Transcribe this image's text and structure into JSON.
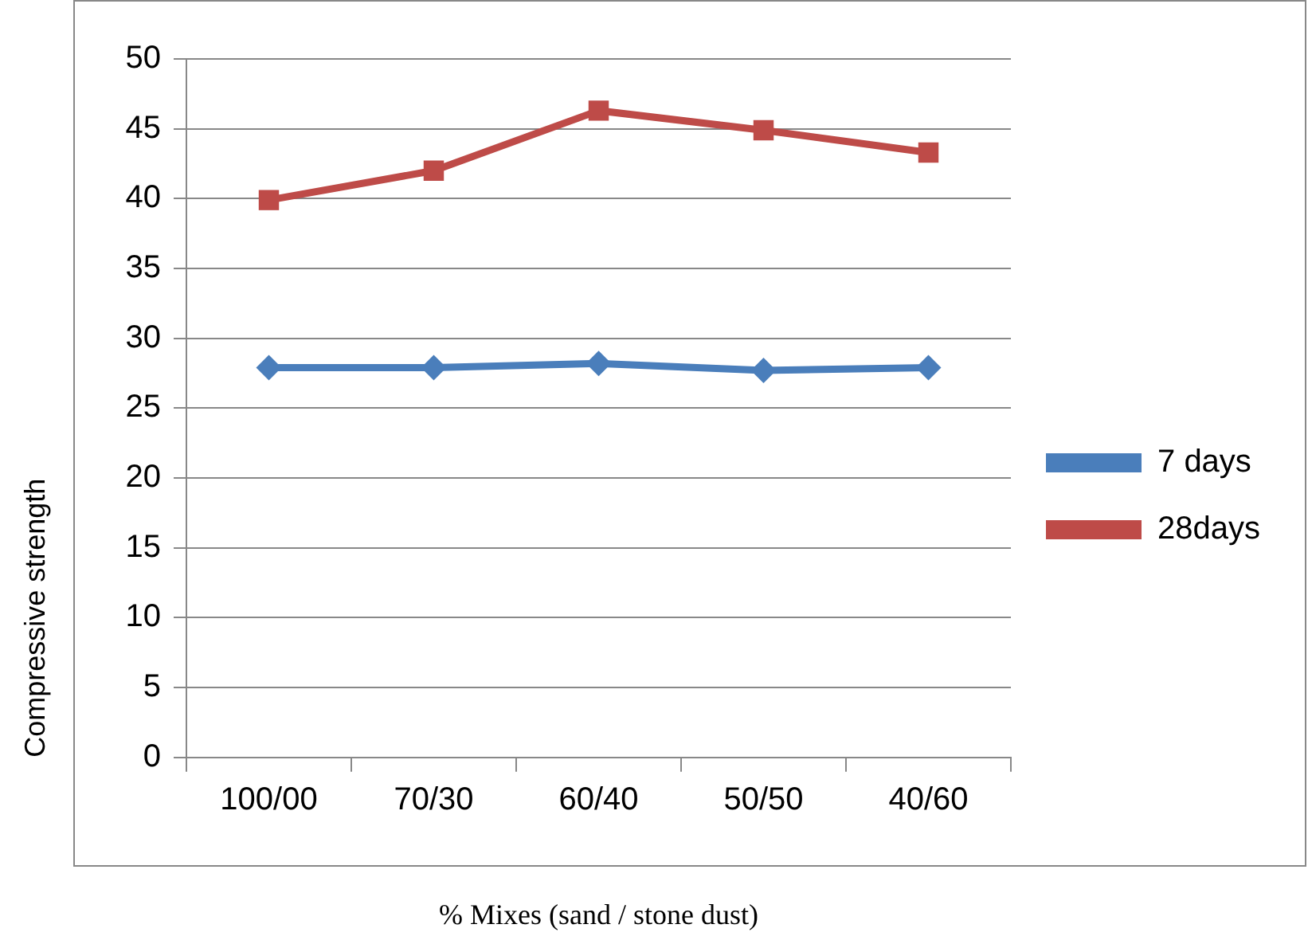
{
  "chart_data": {
    "type": "line",
    "xlabel": "% Mixes (sand / stone dust)",
    "ylabel": "Compressive strength",
    "categories": [
      "100/00",
      "70/30",
      "60/40",
      "50/50",
      "40/60"
    ],
    "series": [
      {
        "name": "7 days",
        "color": "#4a7ebb",
        "marker": "diamond",
        "values": [
          27.9,
          27.9,
          28.2,
          27.7,
          27.9
        ]
      },
      {
        "name": "28days",
        "color": "#be4b48",
        "marker": "square",
        "values": [
          39.9,
          42.0,
          46.3,
          44.9,
          43.3
        ]
      }
    ],
    "ylim": [
      0,
      50
    ],
    "yticks": [
      0,
      5,
      10,
      15,
      20,
      25,
      30,
      35,
      40,
      45,
      50
    ],
    "grid": "y",
    "legend": "right"
  }
}
